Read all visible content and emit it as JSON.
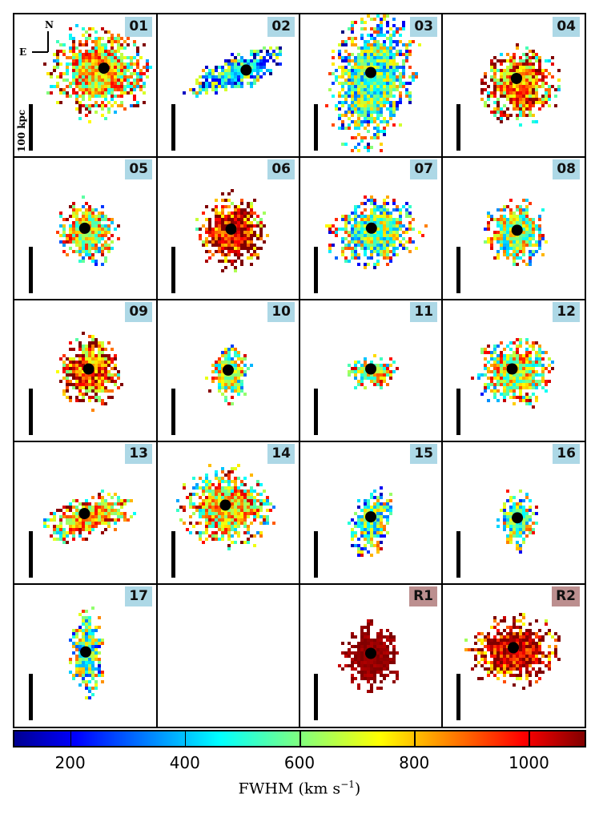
{
  "chart_data": {
    "type": "heatmap",
    "description_units": "FWHM (km s^-1)",
    "colorbar": {
      "label_main": "FWHM (km s",
      "label_exp": "−1",
      "label_close": ")",
      "range": [
        100,
        1100
      ],
      "ticks": [
        "200",
        "400",
        "600",
        "800",
        "1000"
      ],
      "tick_values": [
        200,
        400,
        600,
        800,
        1000
      ],
      "colormap": "jet"
    },
    "compass": {
      "north": "N",
      "east": "E"
    },
    "scalebar_label": "100 kpc",
    "panels": [
      {
        "id": "01",
        "label": "01",
        "type": "target",
        "dominant_fwhm": 750,
        "extent": "large"
      },
      {
        "id": "02",
        "label": "02",
        "type": "target",
        "dominant_fwhm": 450,
        "extent": "small"
      },
      {
        "id": "03",
        "label": "03",
        "type": "target",
        "dominant_fwhm": 550,
        "extent": "large"
      },
      {
        "id": "04",
        "label": "04",
        "type": "target",
        "dominant_fwhm": 850,
        "extent": "medium"
      },
      {
        "id": "05",
        "label": "05",
        "type": "target",
        "dominant_fwhm": 700,
        "extent": "medium"
      },
      {
        "id": "06",
        "label": "06",
        "type": "target",
        "dominant_fwhm": 1000,
        "extent": "medium"
      },
      {
        "id": "07",
        "label": "07",
        "type": "target",
        "dominant_fwhm": 600,
        "extent": "medium"
      },
      {
        "id": "08",
        "label": "08",
        "type": "target",
        "dominant_fwhm": 650,
        "extent": "medium"
      },
      {
        "id": "09",
        "label": "09",
        "type": "target",
        "dominant_fwhm": 900,
        "extent": "medium"
      },
      {
        "id": "10",
        "label": "10",
        "type": "target",
        "dominant_fwhm": 650,
        "extent": "small"
      },
      {
        "id": "11",
        "label": "11",
        "type": "target",
        "dominant_fwhm": 700,
        "extent": "small"
      },
      {
        "id": "12",
        "label": "12",
        "type": "target",
        "dominant_fwhm": 700,
        "extent": "medium"
      },
      {
        "id": "13",
        "label": "13",
        "type": "target",
        "dominant_fwhm": 800,
        "extent": "medium"
      },
      {
        "id": "14",
        "label": "14",
        "type": "target",
        "dominant_fwhm": 750,
        "extent": "large"
      },
      {
        "id": "15",
        "label": "15",
        "type": "target",
        "dominant_fwhm": 550,
        "extent": "small"
      },
      {
        "id": "16",
        "label": "16",
        "type": "target",
        "dominant_fwhm": 600,
        "extent": "small"
      },
      {
        "id": "17",
        "label": "17",
        "type": "target",
        "dominant_fwhm": 550,
        "extent": "small"
      },
      {
        "id": "empty",
        "label": "",
        "type": "empty"
      },
      {
        "id": "R1",
        "label": "R1",
        "type": "reference",
        "dominant_fwhm": 1080,
        "extent": "medium"
      },
      {
        "id": "R2",
        "label": "R2",
        "type": "reference",
        "dominant_fwhm": 1000,
        "extent": "medium"
      }
    ]
  },
  "colors": {
    "target_label_bg": "#add8e6",
    "reference_label_bg": "#bc8f8f",
    "center_marker": "#000000"
  }
}
